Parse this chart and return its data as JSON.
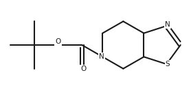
{
  "background": "#ffffff",
  "line_color": "#1a1a1a",
  "line_width": 1.5,
  "font_size": 7.5,
  "atom_labels": {
    "N": "N",
    "O_ether": "O",
    "O_carbonyl": "O",
    "S": "S",
    "N_thiazole": "N"
  }
}
